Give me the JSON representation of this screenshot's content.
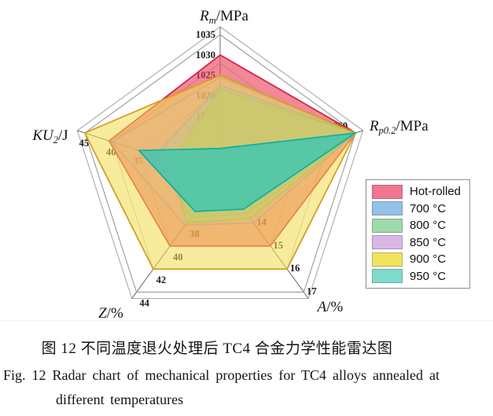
{
  "figure": {
    "caption_zh": "图 12  不同温度退火处理后 TC4 合金力学性能雷达图",
    "caption_en_line1": "Fig. 12   Radar chart of mechanical properties for TC4 alloys annealed at",
    "caption_en_line2": "different temperatures"
  },
  "legend": {
    "items": [
      {
        "label": "Hot-rolled",
        "swatch": "#F27590"
      },
      {
        "label": "700 °C",
        "swatch": "#94C1E8"
      },
      {
        "label": "800 °C",
        "swatch": "#9EDBA9"
      },
      {
        "label": "850 °C",
        "swatch": "#D9B8E8"
      },
      {
        "label": "900 °C",
        "swatch": "#F2E35F"
      },
      {
        "label": "950 °C",
        "swatch": "#7EDCCD"
      }
    ]
  },
  "chart_data": {
    "type": "radar",
    "title": "",
    "grid": {
      "rings": 5,
      "ring_color": "#c6c6c6",
      "outer_ring_color": "#9a9a9a",
      "frame_color": "#ababab",
      "spoke_color": "#6a6a6a",
      "baseline_rule_color": "#eaeaea"
    },
    "axes": [
      {
        "key": "Rm",
        "title": {
          "main": "R",
          "sub": "m",
          "suffix": "/MPa"
        },
        "min": 1000,
        "max": 1035,
        "ticks": [
          1035,
          1030,
          1025,
          1020,
          1015
        ]
      },
      {
        "key": "Rp02",
        "title": {
          "main": "R",
          "sub": "p0.2",
          "suffix": "/MPa"
        },
        "min": 900,
        "max": 960,
        "ticks": [
          960
        ]
      },
      {
        "key": "A",
        "title": {
          "main": "A",
          "sub": "",
          "suffix": "/%"
        },
        "min": 12,
        "max": 17,
        "ticks": [
          14,
          15,
          16,
          17
        ]
      },
      {
        "key": "Z",
        "title": {
          "main": "Z",
          "sub": "",
          "suffix": "/%"
        },
        "min": 34,
        "max": 44,
        "ticks": [
          38,
          40,
          42,
          44
        ]
      },
      {
        "key": "KU2",
        "title": {
          "main": "KU",
          "sub": "2",
          "suffix": "/J"
        },
        "min": 20,
        "max": 45,
        "ticks": [
          45,
          40,
          35,
          30
        ]
      }
    ],
    "axis_order_note": "series values follow axes order: Rm, Rp0.2, A, Z, KU2",
    "series": [
      {
        "name": "Hot-rolled",
        "values": [
          1030,
          960,
          15.0,
          40.0,
          40.5
        ],
        "fill": "#E83A55",
        "fill_opacity": 0.6,
        "stroke": "#D92144",
        "stroke_width": 1.8
      },
      {
        "name": "700 °C",
        "values": [
          1022.5,
          960,
          13.6,
          37.5,
          32.0
        ],
        "fill": "#74A9DC",
        "fill_opacity": 0.45,
        "stroke": "#4D8CCB",
        "stroke_width": 1.3
      },
      {
        "name": "800 °C",
        "values": [
          1021.5,
          960,
          13.8,
          38.0,
          29.0
        ],
        "fill": "#7FC95E",
        "fill_opacity": 0.65,
        "stroke": "#5FB33E",
        "stroke_width": 1.4
      },
      {
        "name": "850 °C",
        "values": [
          1024.5,
          960,
          14.0,
          38.2,
          40.0
        ],
        "fill": "#C9A0DC",
        "fill_opacity": 0.3,
        "stroke": "#A96FC4",
        "stroke_width": 1.2
      },
      {
        "name": "900 °C",
        "values": [
          1025,
          960,
          16.0,
          42.0,
          45.0
        ],
        "fill": "#F0DC4E",
        "fill_opacity": 0.55,
        "stroke": "#D49F1E",
        "stroke_width": 1.8
      },
      {
        "name": "950 °C",
        "values": [
          1007,
          960,
          13.4,
          37.0,
          35.0
        ],
        "fill": "#2FC7B5",
        "fill_opacity": 0.75,
        "stroke": "#0FB2A2",
        "stroke_width": 1.8
      }
    ]
  }
}
